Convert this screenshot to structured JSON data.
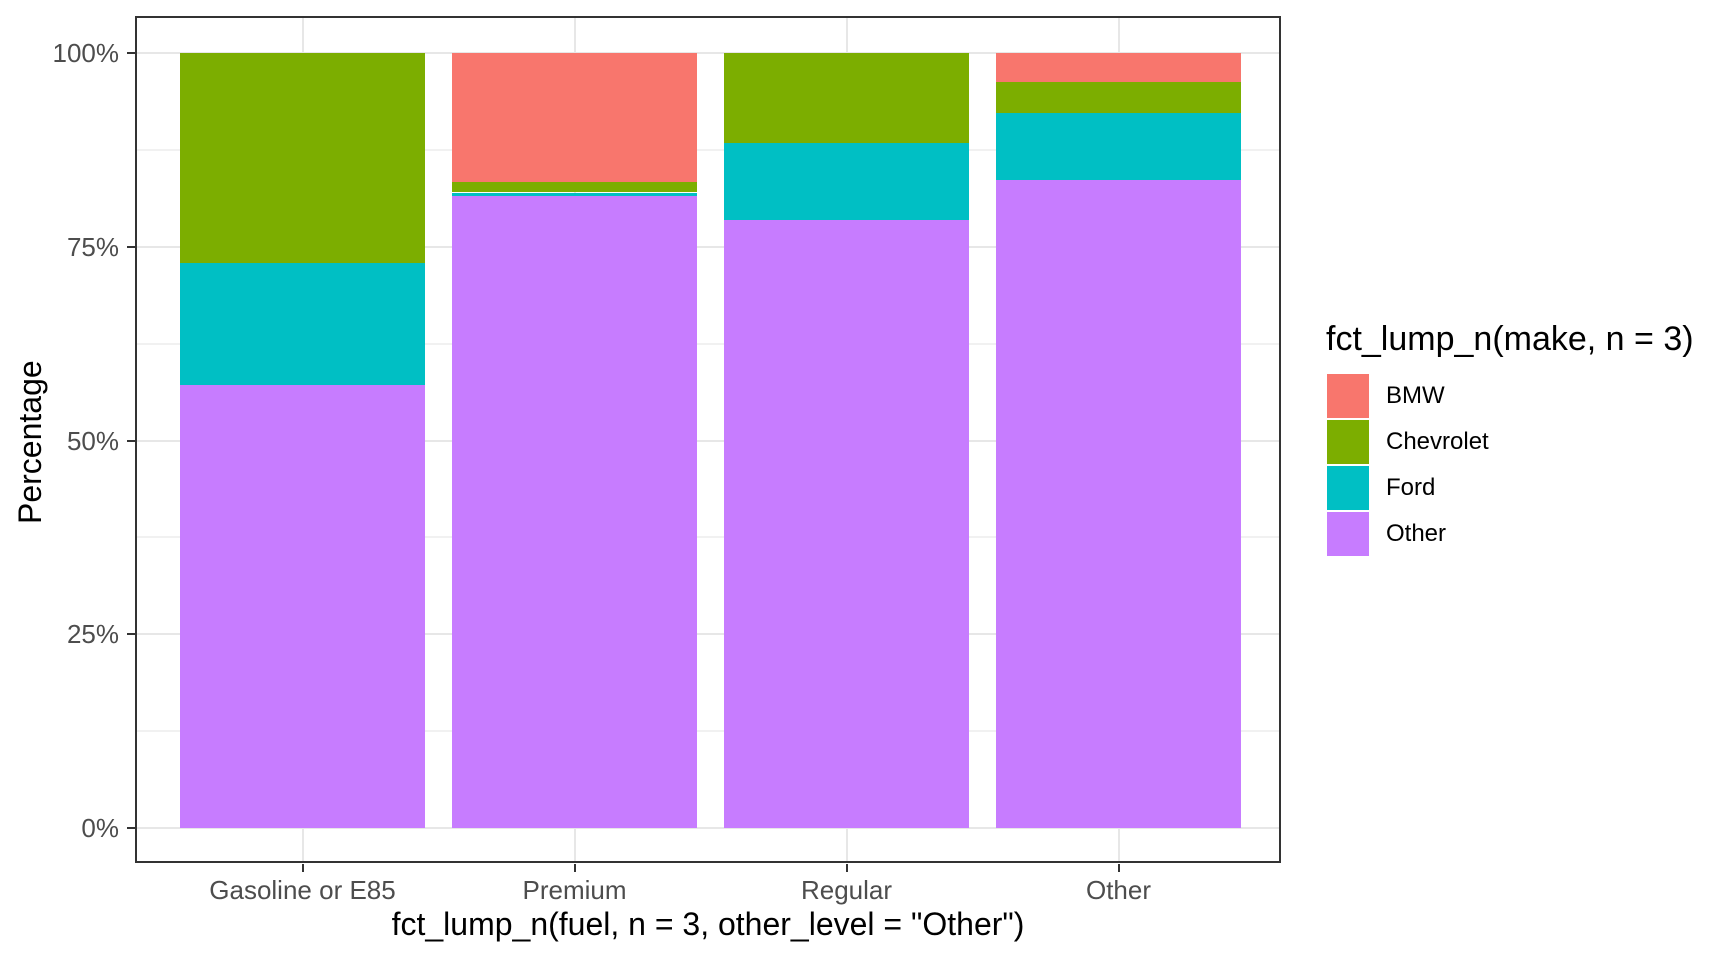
{
  "chart_data": {
    "type": "bar",
    "subtype": "100%-stacked-column",
    "title": "",
    "xlabel": "fct_lump_n(fuel, n = 3, other_level = \"Other\")",
    "ylabel": "Percentage",
    "legend_title": "fct_lump_n(make, n = 3)",
    "legend_position": "right",
    "grid": true,
    "categories": [
      "Gasoline or E85",
      "Premium",
      "Regular",
      "Other"
    ],
    "series": [
      {
        "name": "BMW",
        "color": "#F8766D",
        "values": [
          0,
          16.7,
          0,
          3.7
        ]
      },
      {
        "name": "Chevrolet",
        "color": "#7CAE00",
        "values": [
          27.1,
          1.3,
          11.6,
          4.0
        ]
      },
      {
        "name": "Ford",
        "color": "#00BFC4",
        "values": [
          15.8,
          0.5,
          9.9,
          8.7
        ]
      },
      {
        "name": "Other",
        "color": "#C77CFF",
        "values": [
          57.1,
          81.5,
          78.5,
          83.6
        ]
      }
    ],
    "stack_order_bottom_to_top": [
      "Other",
      "Ford",
      "Chevrolet",
      "BMW"
    ],
    "ylim": [
      0,
      100
    ],
    "y_ticks": [
      {
        "label": "0%",
        "value": 0
      },
      {
        "label": "25%",
        "value": 25
      },
      {
        "label": "50%",
        "value": 50
      },
      {
        "label": "75%",
        "value": 75
      },
      {
        "label": "100%",
        "value": 100
      }
    ],
    "y_minor_values": [
      12.5,
      37.5,
      62.5,
      87.5
    ]
  },
  "appearance": {
    "background": "#FFFFFF",
    "panel_border_color": "#333333",
    "grid_major_color": "#E7E7E7",
    "grid_minor_color": "#F1F1F1",
    "tick_color": "#333333",
    "tick_label_color": "#4D4D4D",
    "axis_title_color": "#000000"
  }
}
